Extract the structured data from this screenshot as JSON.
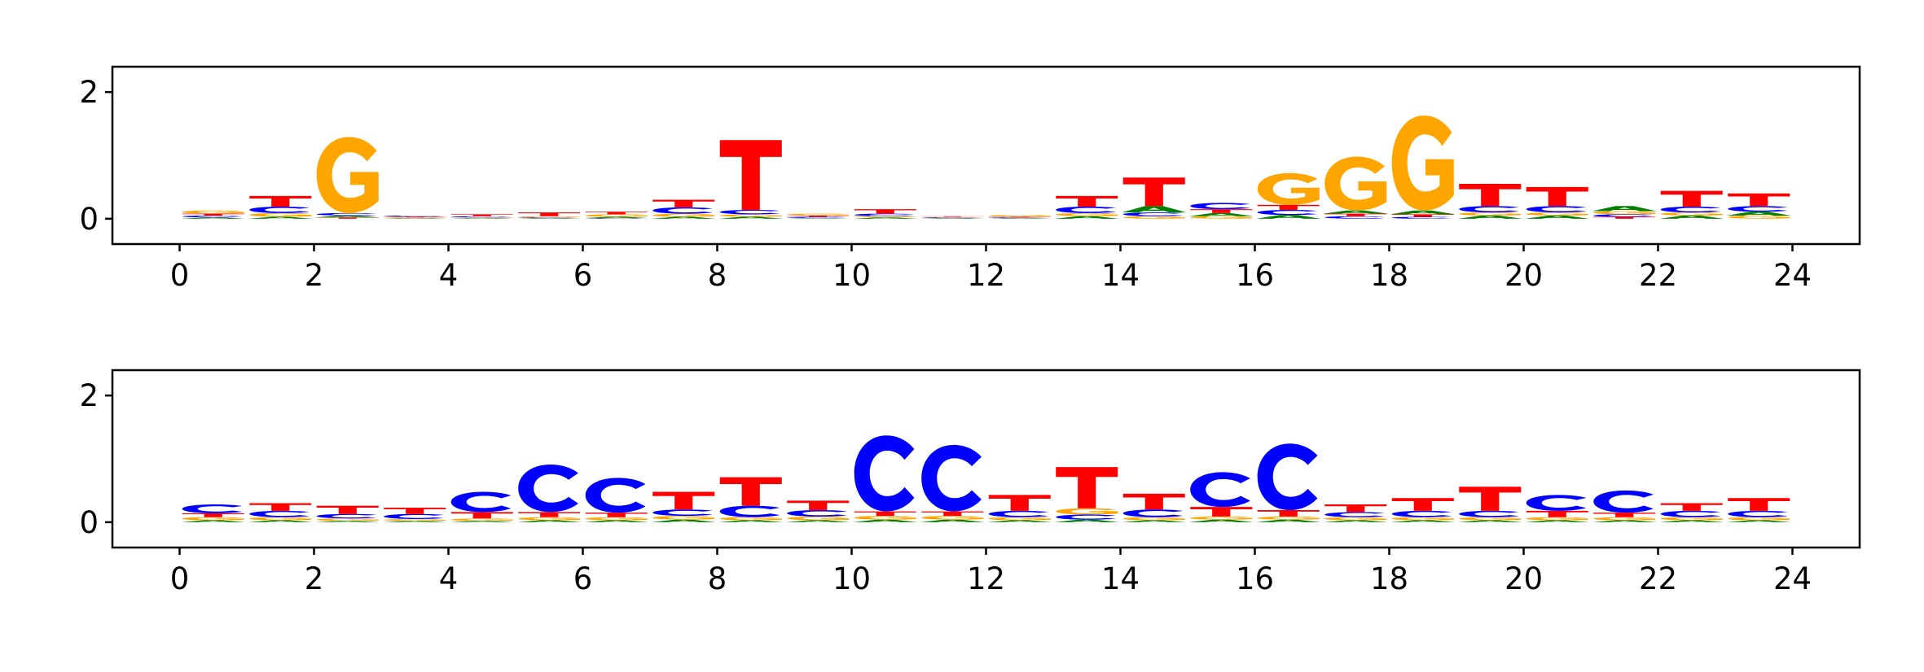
{
  "colors": {
    "A": "#008000",
    "C": "#0000ff",
    "G": "#ffa500",
    "T": "#ff0000"
  },
  "chart_data": [
    {
      "type": "sequence-logo",
      "xlim": [
        -1,
        25
      ],
      "ylim": [
        -0.4,
        2.4
      ],
      "x_ticks": [
        "0",
        "2",
        "4",
        "6",
        "8",
        "10",
        "12",
        "14",
        "16",
        "18",
        "20",
        "22",
        "24"
      ],
      "y_ticks": [
        "0",
        "2"
      ],
      "positions": [
        {
          "x": 0,
          "A": 0.02,
          "C": 0.03,
          "G": 0.05,
          "T": 0.03
        },
        {
          "x": 1,
          "A": 0.03,
          "C": 0.1,
          "G": 0.06,
          "T": 0.17
        },
        {
          "x": 2,
          "A": 0.03,
          "C": 0.04,
          "G": 1.2,
          "T": 0.02
        },
        {
          "x": 3,
          "A": 0.01,
          "C": 0.02,
          "G": 0.01,
          "T": 0.01
        },
        {
          "x": 4,
          "A": 0.01,
          "C": 0.02,
          "G": 0.01,
          "T": 0.03
        },
        {
          "x": 5,
          "A": 0.01,
          "C": 0.01,
          "G": 0.02,
          "T": 0.06
        },
        {
          "x": 6,
          "A": 0.02,
          "C": 0.01,
          "G": 0.04,
          "T": 0.04
        },
        {
          "x": 7,
          "A": 0.03,
          "C": 0.1,
          "G": 0.05,
          "T": 0.12
        },
        {
          "x": 8,
          "A": 0.03,
          "C": 0.07,
          "G": 0.04,
          "T": 1.1
        },
        {
          "x": 9,
          "A": 0.01,
          "C": 0.02,
          "G": 0.03,
          "T": 0.02
        },
        {
          "x": 10,
          "A": 0.02,
          "C": 0.04,
          "G": 0.02,
          "T": 0.07
        },
        {
          "x": 11,
          "A": 0.01,
          "C": 0.01,
          "G": 0.01,
          "T": 0.01
        },
        {
          "x": 12,
          "A": 0.01,
          "C": 0.01,
          "G": 0.03,
          "T": 0.01
        },
        {
          "x": 13,
          "A": 0.04,
          "C": 0.1,
          "G": 0.05,
          "T": 0.17
        },
        {
          "x": 14,
          "A": 0.1,
          "C": 0.06,
          "G": 0.04,
          "T": 0.45
        },
        {
          "x": 15,
          "A": 0.05,
          "C": 0.1,
          "G": 0.04,
          "T": 0.06
        },
        {
          "x": 16,
          "A": 0.06,
          "C": 0.08,
          "G": 0.5,
          "T": 0.08
        },
        {
          "x": 17,
          "A": 0.05,
          "C": 0.04,
          "G": 0.85,
          "T": 0.04
        },
        {
          "x": 18,
          "A": 0.06,
          "C": 0.03,
          "G": 1.5,
          "T": 0.04
        },
        {
          "x": 19,
          "A": 0.05,
          "C": 0.1,
          "G": 0.05,
          "T": 0.35
        },
        {
          "x": 20,
          "A": 0.05,
          "C": 0.1,
          "G": 0.05,
          "T": 0.3
        },
        {
          "x": 21,
          "A": 0.08,
          "C": 0.04,
          "G": 0.05,
          "T": 0.03
        },
        {
          "x": 22,
          "A": 0.05,
          "C": 0.09,
          "G": 0.05,
          "T": 0.25
        },
        {
          "x": 23,
          "A": 0.06,
          "C": 0.09,
          "G": 0.05,
          "T": 0.2
        }
      ]
    },
    {
      "type": "sequence-logo",
      "xlim": [
        -1,
        25
      ],
      "ylim": [
        -0.4,
        2.4
      ],
      "x_ticks": [
        "0",
        "2",
        "4",
        "6",
        "8",
        "10",
        "12",
        "14",
        "16",
        "18",
        "20",
        "22",
        "24"
      ],
      "y_ticks": [
        "0",
        "2"
      ],
      "positions": [
        {
          "x": 0,
          "A": 0.03,
          "C": 0.14,
          "G": 0.05,
          "T": 0.06
        },
        {
          "x": 1,
          "A": 0.03,
          "C": 0.1,
          "G": 0.05,
          "T": 0.12
        },
        {
          "x": 2,
          "A": 0.02,
          "C": 0.07,
          "G": 0.04,
          "T": 0.13
        },
        {
          "x": 3,
          "A": 0.02,
          "C": 0.08,
          "G": 0.03,
          "T": 0.1
        },
        {
          "x": 4,
          "A": 0.02,
          "C": 0.32,
          "G": 0.04,
          "T": 0.1
        },
        {
          "x": 5,
          "A": 0.03,
          "C": 0.75,
          "G": 0.05,
          "T": 0.08
        },
        {
          "x": 6,
          "A": 0.03,
          "C": 0.55,
          "G": 0.05,
          "T": 0.07
        },
        {
          "x": 7,
          "A": 0.04,
          "C": 0.1,
          "G": 0.06,
          "T": 0.28
        },
        {
          "x": 8,
          "A": 0.03,
          "C": 0.18,
          "G": 0.05,
          "T": 0.45
        },
        {
          "x": 9,
          "A": 0.03,
          "C": 0.1,
          "G": 0.06,
          "T": 0.15
        },
        {
          "x": 10,
          "A": 0.04,
          "C": 1.2,
          "G": 0.06,
          "T": 0.07
        },
        {
          "x": 11,
          "A": 0.04,
          "C": 1.05,
          "G": 0.06,
          "T": 0.07
        },
        {
          "x": 12,
          "A": 0.03,
          "C": 0.1,
          "G": 0.05,
          "T": 0.25
        },
        {
          "x": 13,
          "A": 0.04,
          "C": 0.08,
          "G": 0.1,
          "T": 0.65
        },
        {
          "x": 14,
          "A": 0.03,
          "C": 0.12,
          "G": 0.05,
          "T": 0.25
        },
        {
          "x": 15,
          "A": 0.04,
          "C": 0.55,
          "G": 0.05,
          "T": 0.15
        },
        {
          "x": 16,
          "A": 0.04,
          "C": 1.05,
          "G": 0.05,
          "T": 0.1
        },
        {
          "x": 17,
          "A": 0.03,
          "C": 0.08,
          "G": 0.05,
          "T": 0.12
        },
        {
          "x": 18,
          "A": 0.03,
          "C": 0.1,
          "G": 0.05,
          "T": 0.2
        },
        {
          "x": 19,
          "A": 0.03,
          "C": 0.1,
          "G": 0.05,
          "T": 0.38
        },
        {
          "x": 20,
          "A": 0.03,
          "C": 0.25,
          "G": 0.05,
          "T": 0.1
        },
        {
          "x": 21,
          "A": 0.03,
          "C": 0.35,
          "G": 0.05,
          "T": 0.07
        },
        {
          "x": 22,
          "A": 0.03,
          "C": 0.1,
          "G": 0.05,
          "T": 0.12
        },
        {
          "x": 23,
          "A": 0.03,
          "C": 0.1,
          "G": 0.05,
          "T": 0.2
        }
      ]
    }
  ]
}
